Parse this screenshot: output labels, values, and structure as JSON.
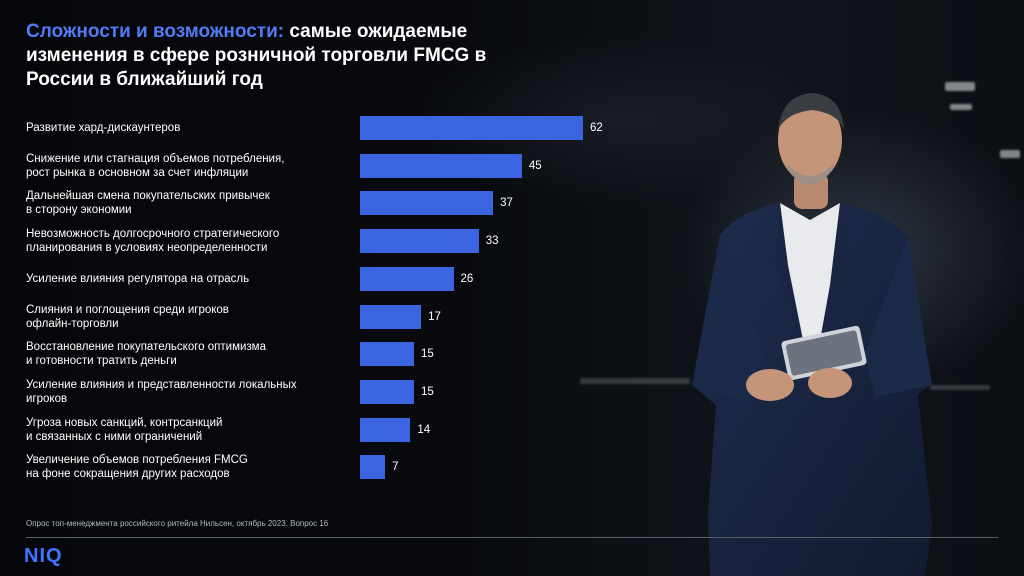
{
  "title": {
    "accent": "Сложности и возможности:",
    "rest": " самые ожидаемые изменения в сфере розничной торговли FMCG в России в ближайший год"
  },
  "chart_data": {
    "type": "bar",
    "orientation": "horizontal",
    "categories": [
      [
        "Развитие хард-дискаунтеров"
      ],
      [
        "Снижение или стагнация объемов потребления,",
        "рост рынка в основном за счет инфляции"
      ],
      [
        "Дальнейшая смена покупательских привычек",
        "в сторону экономии"
      ],
      [
        "Невозможность долгосрочного стратегического",
        "планирования в условиях неопределенности"
      ],
      [
        "Усиление влияния регулятора на отрасль"
      ],
      [
        "Слияния и поглощения среди игроков",
        "офлайн-торговли"
      ],
      [
        "Восстановление покупательского оптимизма",
        "и готовности тратить деньги"
      ],
      [
        "Усиление влияния и представленности локальных",
        "игроков"
      ],
      [
        "Угроза новых санкций, контрсанкций",
        "и связанных с ними ограничений"
      ],
      [
        "Увеличение объемов потребления FMCG",
        "на фоне сокращения других расходов"
      ]
    ],
    "values": [
      62,
      45,
      37,
      33,
      26,
      17,
      15,
      15,
      14,
      7
    ],
    "bar_color": "#3b64e0",
    "grid": false,
    "legend": "none"
  },
  "footnote": "Опрос топ-менеджмента российского ритейла Нильсен, октябрь 2023. Вопрос 16",
  "logo": "NIQ",
  "colors": {
    "accent": "#4f7cf5",
    "logo": "#3f74ff",
    "background": "#07090d"
  }
}
